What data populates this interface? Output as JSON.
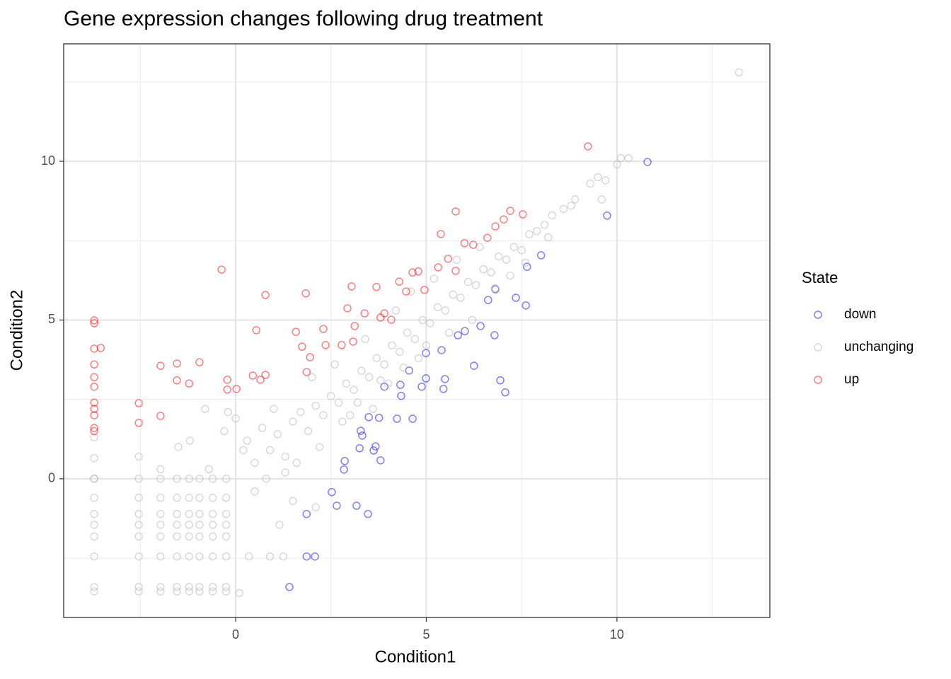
{
  "chart_data": {
    "type": "scatter",
    "title": "Gene expression changes following drug treatment",
    "x_label": "Condition1",
    "y_label": "Condition2",
    "legend_title": "State",
    "legend_position": "right",
    "grid": true,
    "alpha": 0.5,
    "xlim": [
      -4.51,
      14.01
    ],
    "ylim": [
      -4.37,
      13.7
    ],
    "xticks": [
      0,
      5,
      10
    ],
    "yticks": [
      0,
      5,
      10
    ],
    "xminor": [
      -2.5,
      2.5,
      7.5,
      12.5
    ],
    "yminor": [
      -2.5,
      2.5,
      7.5,
      12.5
    ],
    "series": [
      {
        "name": "down",
        "color": "#0000ff",
        "x": [
          1.41,
          1.86,
          2.08,
          1.86,
          2.52,
          2.65,
          2.84,
          2.86,
          3.17,
          3.47,
          3.28,
          3.32,
          3.25,
          3.62,
          3.67,
          3.8,
          3.49,
          3.76,
          3.9,
          4.23,
          4.64,
          4.34,
          4.32,
          4.55,
          4.88,
          4.99,
          5.4,
          5.45,
          5.49,
          4.99,
          5.83,
          6.01,
          6.25,
          6.79,
          6.42,
          6.62,
          6.81,
          6.94,
          7.07,
          7.35,
          7.61,
          7.64,
          8.01,
          9.74,
          10.8
        ],
        "values": [
          -3.41,
          -2.45,
          -2.45,
          -1.11,
          -0.42,
          -0.85,
          0.29,
          0.56,
          -0.85,
          -1.11,
          1.51,
          1.36,
          0.96,
          0.89,
          1.02,
          0.58,
          1.94,
          1.92,
          2.9,
          1.89,
          1.89,
          2.61,
          2.96,
          3.41,
          2.9,
          3.16,
          4.05,
          2.83,
          3.14,
          3.96,
          4.52,
          4.65,
          3.56,
          4.52,
          4.81,
          5.63,
          5.97,
          3.1,
          2.72,
          5.7,
          5.46,
          6.68,
          7.04,
          8.29,
          9.98
        ]
      },
      {
        "name": "unchanging",
        "color": "#b3b3b3",
        "x": [
          -3.71,
          -3.71,
          -3.71,
          -3.71,
          -3.71,
          -3.71,
          -3.71,
          -3.71,
          -2.54,
          -2.54,
          -2.54,
          -2.54,
          -2.54,
          -2.54,
          -2.54,
          -2.54,
          -1.97,
          -1.97,
          -1.97,
          -1.97,
          -1.97,
          -1.97,
          -1.97,
          -1.97,
          -1.54,
          -1.54,
          -1.54,
          -1.54,
          -1.54,
          -1.54,
          -1.54,
          -1.54,
          -1.22,
          -1.22,
          -1.22,
          -1.22,
          -1.22,
          -1.22,
          -1.22,
          -1.22,
          -0.95,
          -0.95,
          -0.95,
          -0.95,
          -0.95,
          -0.95,
          -0.95,
          -0.95,
          -0.6,
          -0.6,
          -0.6,
          -0.6,
          -0.6,
          -0.6,
          -0.6,
          -0.6,
          -0.25,
          -0.25,
          -0.25,
          -0.25,
          -0.25,
          -0.25,
          -0.25,
          -0.25,
          0,
          0.3,
          0.5,
          0.7,
          0.9,
          1.1,
          1.3,
          1.5,
          1.7,
          1.9,
          2.1,
          2.3,
          2.5,
          2.7,
          2.9,
          3.1,
          3.3,
          3.5,
          3.7,
          3.9,
          4.1,
          4.3,
          4.5,
          4.7,
          4.9,
          5.1,
          5.3,
          5.5,
          5.7,
          5.9,
          6.1,
          6.3,
          6.5,
          6.7,
          6.9,
          7.1,
          7.3,
          7.5,
          7.7,
          7.9,
          8.1,
          8.3,
          8.6,
          8.9,
          9.3,
          9.5,
          9.7,
          10.0,
          10.1,
          10.3,
          13.2,
          9.6,
          0.1,
          0.35,
          0.9,
          1.25,
          1.15,
          1.5,
          2.1,
          1.3,
          0.5,
          0.8,
          -0.7,
          -0.3,
          -0.2,
          -0.8,
          -1.2,
          -1.5,
          -2.54,
          -3.71,
          -1.97,
          3.0,
          3.6,
          4.0,
          4.8,
          5.6,
          6.2,
          6.8,
          7.2,
          2.0,
          2.6,
          3.4,
          4.2,
          4.6,
          5.2,
          5.8,
          6.4,
          1.0,
          0.2,
          1.6,
          2.2,
          2.8,
          3.2,
          3.8,
          4.4,
          5.0,
          7.6,
          8.2,
          8.8,
          -3.71,
          -3.71
        ],
        "values": [
          -3.41,
          -3.55,
          -2.45,
          -1.82,
          -1.45,
          -1.11,
          -0.6,
          0,
          -3.41,
          -3.55,
          -2.45,
          -1.82,
          -1.45,
          -1.11,
          -0.6,
          0,
          -3.41,
          -3.55,
          -2.45,
          -1.82,
          -1.45,
          -1.11,
          -0.6,
          0,
          -3.41,
          -3.55,
          -2.45,
          -1.82,
          -1.45,
          -1.11,
          -0.6,
          0,
          -3.41,
          -3.55,
          -2.45,
          -1.82,
          -1.45,
          -1.11,
          -0.6,
          0,
          -3.41,
          -3.55,
          -2.45,
          -1.82,
          -1.45,
          -1.11,
          -0.6,
          0,
          -3.41,
          -3.55,
          -2.45,
          -1.82,
          -1.45,
          -1.11,
          -0.6,
          0,
          -3.41,
          -3.55,
          -2.45,
          -1.82,
          -1.45,
          -1.11,
          -0.6,
          0,
          1.9,
          1.2,
          0.5,
          1.6,
          0.9,
          1.4,
          0.7,
          1.8,
          2.1,
          1.5,
          2.3,
          2.0,
          2.6,
          2.4,
          3.0,
          2.8,
          3.4,
          3.2,
          3.8,
          3.6,
          4.2,
          4.0,
          4.6,
          4.4,
          5.0,
          4.9,
          5.4,
          5.3,
          5.8,
          5.7,
          6.2,
          6.1,
          6.6,
          6.5,
          7.0,
          6.9,
          7.3,
          7.2,
          7.7,
          7.8,
          8.0,
          8.3,
          8.5,
          8.8,
          9.3,
          9.5,
          9.4,
          9.9,
          10.1,
          10.1,
          12.8,
          8.8,
          -3.6,
          -2.45,
          -2.45,
          -2.45,
          -1.45,
          -0.7,
          -0.9,
          0.2,
          -0.4,
          0.0,
          0.3,
          1.5,
          2.1,
          2.2,
          1.2,
          1.0,
          0.7,
          0.0,
          0.3,
          2.0,
          2.2,
          3.0,
          3.8,
          4.6,
          5.0,
          6.0,
          6.4,
          3.2,
          3.6,
          4.4,
          5.3,
          5.9,
          6.3,
          6.9,
          7.3,
          2.2,
          0.9,
          0.5,
          1.0,
          1.8,
          2.4,
          3.1,
          3.5,
          4.2,
          6.8,
          7.6,
          8.6,
          0.65,
          1.3
        ]
      },
      {
        "name": "up",
        "color": "#ff0000",
        "x": [
          -3.71,
          -3.71,
          -3.71,
          -3.71,
          -3.71,
          -3.71,
          -3.71,
          -3.71,
          -3.71,
          -3.71,
          -3.71,
          -3.54,
          -2.54,
          -2.54,
          -1.97,
          -1.97,
          -1.54,
          -1.54,
          -1.22,
          -0.95,
          -0.37,
          -0.22,
          -0.22,
          0.02,
          0.45,
          0.54,
          0.65,
          0.78,
          0.78,
          1.58,
          1.74,
          1.84,
          1.86,
          1.95,
          2.3,
          2.36,
          2.78,
          2.93,
          3.04,
          3.12,
          3.08,
          3.38,
          3.69,
          3.8,
          3.9,
          4.08,
          4.29,
          4.47,
          4.64,
          4.79,
          4.95,
          5.31,
          5.38,
          5.57,
          5.77,
          5.77,
          6.0,
          6.23,
          6.6,
          6.81,
          7.03,
          7.2,
          7.53,
          9.24
        ],
        "values": [
          4.99,
          4.9,
          4.1,
          3.6,
          3.2,
          2.9,
          2.4,
          2.2,
          2.0,
          1.6,
          1.5,
          4.12,
          2.38,
          1.76,
          3.56,
          1.98,
          3.63,
          3.1,
          3.0,
          3.67,
          6.59,
          3.12,
          2.81,
          2.83,
          3.25,
          4.68,
          3.12,
          5.79,
          3.27,
          4.63,
          4.16,
          5.84,
          3.36,
          3.83,
          4.72,
          4.21,
          4.21,
          5.37,
          6.06,
          4.81,
          4.32,
          5.21,
          6.04,
          5.08,
          5.21,
          5.01,
          6.21,
          5.9,
          6.5,
          6.53,
          5.95,
          6.66,
          7.71,
          6.93,
          8.42,
          6.55,
          7.42,
          7.37,
          7.59,
          7.95,
          8.17,
          8.44,
          8.33,
          10.47
        ]
      }
    ]
  }
}
